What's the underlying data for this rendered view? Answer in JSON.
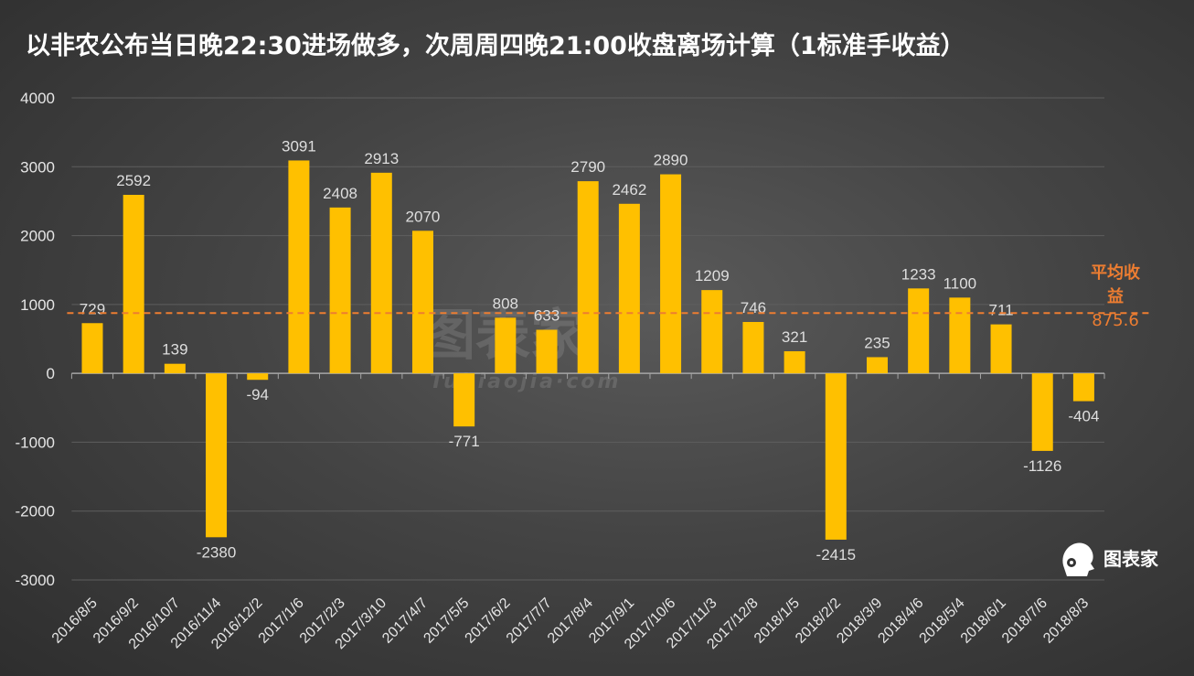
{
  "chart_data": {
    "type": "bar",
    "title": "以非农公布当日晚22:30进场做多，次周周四晚21:00收盘离场计算（1标准手收益）",
    "categories": [
      "2016/8/5",
      "2016/9/2",
      "2016/10/7",
      "2016/11/4",
      "2016/12/2",
      "2017/1/6",
      "2017/2/3",
      "2017/3/10",
      "2017/4/7",
      "2017/5/5",
      "2017/6/2",
      "2017/7/7",
      "2017/8/4",
      "2017/9/1",
      "2017/10/6",
      "2017/11/3",
      "2017/12/8",
      "2018/1/5",
      "2018/2/2",
      "2018/3/9",
      "2018/4/6",
      "2018/5/4",
      "2018/6/1",
      "2018/7/6",
      "2018/8/3"
    ],
    "values": [
      729,
      2592,
      139,
      -2380,
      -94,
      3091,
      2408,
      2913,
      2070,
      -771,
      808,
      633,
      2790,
      2462,
      2890,
      1209,
      746,
      321,
      -2415,
      235,
      1233,
      1100,
      711,
      -1126,
      -404
    ],
    "ylim": [
      -3000,
      4000
    ],
    "yticks": [
      4000,
      3000,
      2000,
      1000,
      0,
      -1000,
      -2000,
      -3000
    ],
    "xlabel": "",
    "ylabel": "",
    "grid": true,
    "bar_color": "#ffc000",
    "average": {
      "label": "平均收益",
      "value": 875.6,
      "color": "#ed7d31"
    }
  },
  "watermark": {
    "main": "图表家",
    "sub": "Tubiaojia·com"
  },
  "logo": {
    "text": "图表家"
  }
}
